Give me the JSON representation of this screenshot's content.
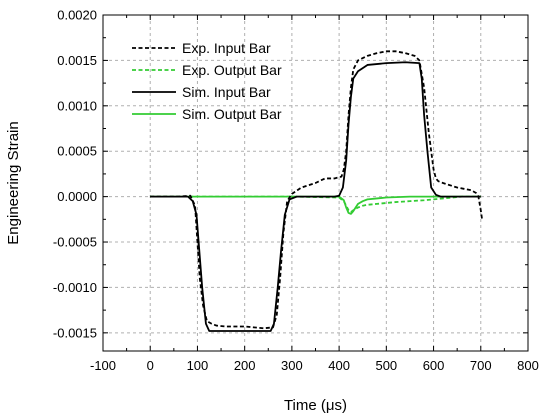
{
  "chart_data": {
    "type": "line",
    "title": "",
    "xlabel": "Time (μs)",
    "ylabel": "Engineering Strain",
    "xlim": [
      -100,
      800
    ],
    "ylim": [
      -0.0017,
      0.002
    ],
    "xticks": [
      -100,
      0,
      100,
      200,
      300,
      400,
      500,
      600,
      700,
      800
    ],
    "xtick_labels": [
      "-100",
      "0",
      "100",
      "200",
      "300",
      "400",
      "500",
      "600",
      "700",
      "800"
    ],
    "yticks": [
      -0.0015,
      -0.001,
      -0.0005,
      0.0,
      0.0005,
      0.001,
      0.0015,
      0.002
    ],
    "ytick_labels": [
      "-0.0015",
      "-0.0010",
      "-0.0005",
      "0.0000",
      "0.0005",
      "0.0010",
      "0.0015",
      "0.0020"
    ],
    "grid": true,
    "legend_position": "top-left",
    "series": [
      {
        "name": "Exp. Input Bar",
        "color": "#000000",
        "dash": "dashed",
        "x": [
          0,
          60,
          85,
          95,
          100,
          105,
          112,
          120,
          130,
          140,
          160,
          200,
          240,
          260,
          268,
          275,
          282,
          290,
          300,
          320,
          350,
          370,
          390,
          405,
          410,
          415,
          420,
          425,
          430,
          440,
          460,
          480,
          500,
          520,
          540,
          560,
          570,
          580,
          590,
          600,
          605,
          610,
          620,
          650,
          680,
          690,
          695,
          700,
          703
        ],
        "y": [
          0.0,
          0.0,
          1e-05,
          -0.0001,
          -0.0005,
          -0.0009,
          -0.0012,
          -0.00137,
          -0.0014,
          -0.00142,
          -0.00143,
          -0.00143,
          -0.00145,
          -0.00144,
          -0.0013,
          -0.0009,
          -0.0004,
          -5e-05,
          3e-05,
          0.0001,
          0.00015,
          0.0002,
          0.0002,
          0.00022,
          0.0003,
          0.0005,
          0.0009,
          0.0012,
          0.0014,
          0.0015,
          0.00155,
          0.00158,
          0.0016,
          0.0016,
          0.00158,
          0.00155,
          0.0015,
          0.0012,
          0.0007,
          0.0003,
          0.0002,
          0.00017,
          0.00015,
          0.0001,
          7e-05,
          4e-05,
          0.0,
          -0.00015,
          -0.00026
        ]
      },
      {
        "name": "Exp. Output Bar",
        "color": "#33cc33",
        "dash": "dashed",
        "x": [
          0,
          200,
          300,
          400,
          410,
          415,
          420,
          425,
          430,
          440,
          450,
          460,
          480,
          500,
          520,
          550,
          580,
          600,
          620,
          640,
          660,
          680,
          700
        ],
        "y": [
          0.0,
          0.0,
          0.0,
          -1e-05,
          -5e-05,
          -0.0001,
          -0.00015,
          -0.00017,
          -0.00015,
          -0.00012,
          -0.0001,
          -9e-05,
          -8e-05,
          -7e-05,
          -6e-05,
          -5e-05,
          -4e-05,
          -3e-05,
          -2e-05,
          -1e-05,
          0.0,
          0.0,
          0.0
        ]
      },
      {
        "name": "Sim. Input Bar",
        "color": "#000000",
        "dash": "solid",
        "x": [
          0,
          80,
          90,
          98,
          104,
          110,
          118,
          125,
          135,
          200,
          255,
          262,
          270,
          277,
          285,
          295,
          310,
          390,
          400,
          408,
          415,
          420,
          425,
          430,
          440,
          460,
          500,
          540,
          570,
          575,
          580,
          587,
          595,
          605,
          615,
          650,
          700
        ],
        "y": [
          0.0,
          0.0,
          -5e-05,
          -0.0002,
          -0.0006,
          -0.001,
          -0.0014,
          -0.00148,
          -0.00148,
          -0.00148,
          -0.00148,
          -0.0014,
          -0.001,
          -0.0006,
          -0.0002,
          -3e-05,
          0.0,
          0.0,
          1e-05,
          0.0001,
          0.0004,
          0.0008,
          0.0011,
          0.0013,
          0.00138,
          0.00145,
          0.00147,
          0.00148,
          0.00147,
          0.0013,
          0.0009,
          0.0005,
          0.0001,
          2e-05,
          0.0,
          0.0,
          0.0
        ]
      },
      {
        "name": "Sim. Output Bar",
        "color": "#33cc33",
        "dash": "solid",
        "x": [
          0,
          300,
          400,
          410,
          415,
          420,
          425,
          430,
          435,
          440,
          450,
          460,
          480,
          500,
          550,
          600,
          650,
          700
        ],
        "y": [
          0.0,
          0.0,
          0.0,
          -4e-05,
          -0.00012,
          -0.00018,
          -0.00019,
          -0.00016,
          -0.00012,
          -8e-05,
          -5e-05,
          -3e-05,
          -2e-05,
          -1e-05,
          0.0,
          0.0,
          0.0,
          0.0
        ]
      }
    ]
  }
}
